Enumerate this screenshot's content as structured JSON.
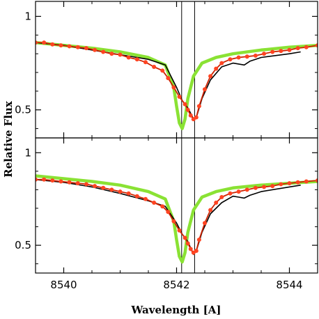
{
  "chart_data": [
    {
      "type": "line",
      "xlim": [
        8539.5,
        8544.5
      ],
      "ylim": [
        0.35,
        1.08
      ],
      "yticks": [
        0.5,
        1
      ],
      "ytick_labels": [
        "0.5",
        "1"
      ],
      "xticks": [
        8540,
        8542,
        8544
      ],
      "xtick_labels": [],
      "vlines": [
        8542.09,
        8542.32
      ],
      "grid": false,
      "series": [
        {
          "color": "#8ae234",
          "style": "thick-line",
          "x": [
            8539.5,
            8540,
            8540.5,
            8541,
            8541.5,
            8541.8,
            8541.95,
            8542.0,
            8542.05,
            8542.1,
            8542.15,
            8542.2,
            8542.3,
            8542.45,
            8542.7,
            8543,
            8543.5,
            8544,
            8544.5
          ],
          "y": [
            0.86,
            0.845,
            0.83,
            0.81,
            0.78,
            0.74,
            0.62,
            0.52,
            0.43,
            0.4,
            0.45,
            0.56,
            0.68,
            0.75,
            0.78,
            0.8,
            0.82,
            0.835,
            0.845
          ]
        },
        {
          "color": "#000000",
          "style": "thin-line",
          "x": [
            8539.5,
            8540,
            8540.5,
            8541,
            8541.5,
            8541.8,
            8542.0,
            8542.1,
            8542.2,
            8542.27,
            8542.3,
            8542.35,
            8542.45,
            8542.6,
            8542.8,
            8543,
            8543.1,
            8543.2,
            8543.3,
            8543.5,
            8544,
            8544.2
          ],
          "y": [
            0.86,
            0.845,
            0.82,
            0.795,
            0.77,
            0.74,
            0.62,
            0.55,
            0.51,
            0.47,
            0.45,
            0.46,
            0.56,
            0.66,
            0.73,
            0.75,
            0.745,
            0.74,
            0.76,
            0.78,
            0.8,
            0.81
          ]
        },
        {
          "color": "#cc2200",
          "marker": "#ff4422",
          "style": "line-dots",
          "x": [
            8539.5,
            8539.65,
            8539.8,
            8539.95,
            8540.1,
            8540.25,
            8540.4,
            8540.55,
            8540.7,
            8540.85,
            8541.0,
            8541.15,
            8541.3,
            8541.45,
            8541.6,
            8541.75,
            8541.85,
            8541.95,
            8542.05,
            8542.15,
            8542.2,
            8542.25,
            8542.3,
            8542.35,
            8542.4,
            8542.5,
            8542.6,
            8542.7,
            8542.8,
            8542.95,
            8543.1,
            8543.25,
            8543.4,
            8543.55,
            8543.7,
            8543.85,
            8544.0,
            8544.15,
            8544.3,
            8544.5
          ],
          "y": [
            0.86,
            0.86,
            0.85,
            0.845,
            0.84,
            0.835,
            0.83,
            0.82,
            0.81,
            0.8,
            0.795,
            0.78,
            0.77,
            0.755,
            0.73,
            0.71,
            0.67,
            0.62,
            0.57,
            0.53,
            0.5,
            0.47,
            0.45,
            0.46,
            0.52,
            0.61,
            0.68,
            0.72,
            0.75,
            0.77,
            0.78,
            0.785,
            0.79,
            0.8,
            0.81,
            0.815,
            0.82,
            0.83,
            0.835,
            0.845
          ]
        }
      ]
    },
    {
      "type": "line",
      "xlim": [
        8539.5,
        8544.5
      ],
      "ylim": [
        0.35,
        1.08
      ],
      "yticks": [
        0.5,
        1
      ],
      "ytick_labels": [
        "0.5",
        "1"
      ],
      "xticks": [
        8540,
        8542,
        8544
      ],
      "xtick_labels": [
        "8540",
        "8542",
        "8544"
      ],
      "xlabel": "Wavelength [A]",
      "vlines": [
        8542.09,
        8542.32
      ],
      "grid": false,
      "series": [
        {
          "color": "#8ae234",
          "style": "thick-line",
          "x": [
            8539.5,
            8540,
            8540.5,
            8541,
            8541.5,
            8541.8,
            8541.95,
            8542.0,
            8542.05,
            8542.1,
            8542.15,
            8542.2,
            8542.3,
            8542.45,
            8542.7,
            8543,
            8543.5,
            8544,
            8544.5
          ],
          "y": [
            0.875,
            0.86,
            0.845,
            0.825,
            0.79,
            0.75,
            0.63,
            0.53,
            0.44,
            0.41,
            0.46,
            0.57,
            0.69,
            0.76,
            0.79,
            0.81,
            0.825,
            0.835,
            0.845
          ]
        },
        {
          "color": "#000000",
          "style": "thin-line",
          "x": [
            8539.5,
            8540,
            8540.5,
            8541,
            8541.5,
            8541.8,
            8542.0,
            8542.1,
            8542.2,
            8542.27,
            8542.3,
            8542.35,
            8542.45,
            8542.6,
            8542.8,
            8543,
            8543.1,
            8543.2,
            8543.3,
            8543.5,
            8544,
            8544.2
          ],
          "y": [
            0.855,
            0.84,
            0.815,
            0.78,
            0.74,
            0.71,
            0.62,
            0.56,
            0.52,
            0.47,
            0.45,
            0.47,
            0.57,
            0.67,
            0.73,
            0.765,
            0.76,
            0.755,
            0.77,
            0.79,
            0.815,
            0.825
          ]
        },
        {
          "color": "#cc2200",
          "marker": "#ff4422",
          "style": "line-dots",
          "x": [
            8539.5,
            8539.65,
            8539.8,
            8539.95,
            8540.1,
            8540.25,
            8540.4,
            8540.55,
            8540.7,
            8540.85,
            8541.0,
            8541.15,
            8541.3,
            8541.45,
            8541.6,
            8541.75,
            8541.85,
            8541.95,
            8542.05,
            8542.15,
            8542.2,
            8542.25,
            8542.3,
            8542.35,
            8542.4,
            8542.5,
            8542.6,
            8542.7,
            8542.8,
            8542.95,
            8543.1,
            8543.25,
            8543.4,
            8543.55,
            8543.7,
            8543.85,
            8544.0,
            8544.15,
            8544.3,
            8544.5
          ],
          "y": [
            0.855,
            0.855,
            0.85,
            0.845,
            0.84,
            0.835,
            0.83,
            0.82,
            0.81,
            0.8,
            0.79,
            0.78,
            0.765,
            0.75,
            0.73,
            0.71,
            0.68,
            0.63,
            0.58,
            0.54,
            0.51,
            0.48,
            0.46,
            0.47,
            0.53,
            0.62,
            0.69,
            0.73,
            0.76,
            0.78,
            0.79,
            0.8,
            0.81,
            0.815,
            0.82,
            0.83,
            0.835,
            0.84,
            0.845,
            0.85
          ]
        }
      ]
    }
  ],
  "ylabel": "Relative Flux"
}
